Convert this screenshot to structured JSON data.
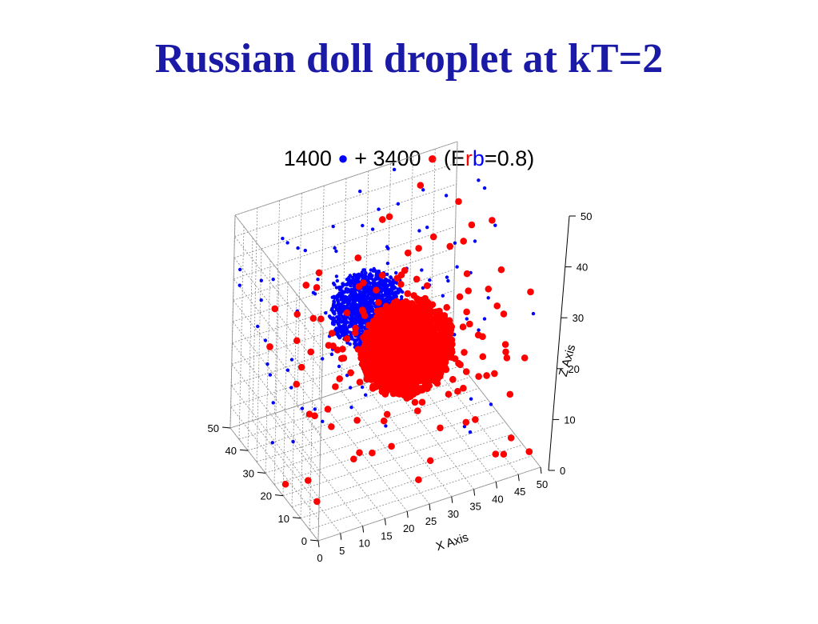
{
  "slide": {
    "title": "Russian doll droplet at kT=2",
    "subtitle": {
      "count_a": "1400",
      "dot_a": "●",
      "plus": "+",
      "count_b": "3400",
      "dot_b": "●",
      "param_open": "(E",
      "param_r": "r",
      "param_b": "b",
      "param_close": "=0.8)"
    }
  },
  "colors": {
    "series_a": "#0000ff",
    "series_b": "#ff0000",
    "title": "#1a1aa6"
  },
  "chart_data": {
    "type": "scatter",
    "dimensions": 3,
    "xlabel": "X Axis",
    "ylabel": "",
    "zlabel": "Z Axis",
    "xlim": [
      0,
      50
    ],
    "ylim": [
      0,
      50
    ],
    "zlim": [
      0,
      50
    ],
    "x_ticks": [
      0,
      5,
      10,
      15,
      20,
      25,
      30,
      35,
      40,
      45,
      50
    ],
    "y_ticks": [
      0,
      10,
      20,
      30,
      40,
      50
    ],
    "z_ticks": [
      0,
      10,
      20,
      30,
      40,
      50
    ],
    "grid": true,
    "series": [
      {
        "color": "#0000ff",
        "marker": "small dot",
        "count": 1400,
        "cluster_center": [
          22,
          30,
          31
        ],
        "cluster_radius": 8
      },
      {
        "color": "#ff0000",
        "marker": "large dot",
        "count": 3400,
        "cluster_center": [
          28,
          22,
          24
        ],
        "cluster_radius": 10
      }
    ]
  }
}
